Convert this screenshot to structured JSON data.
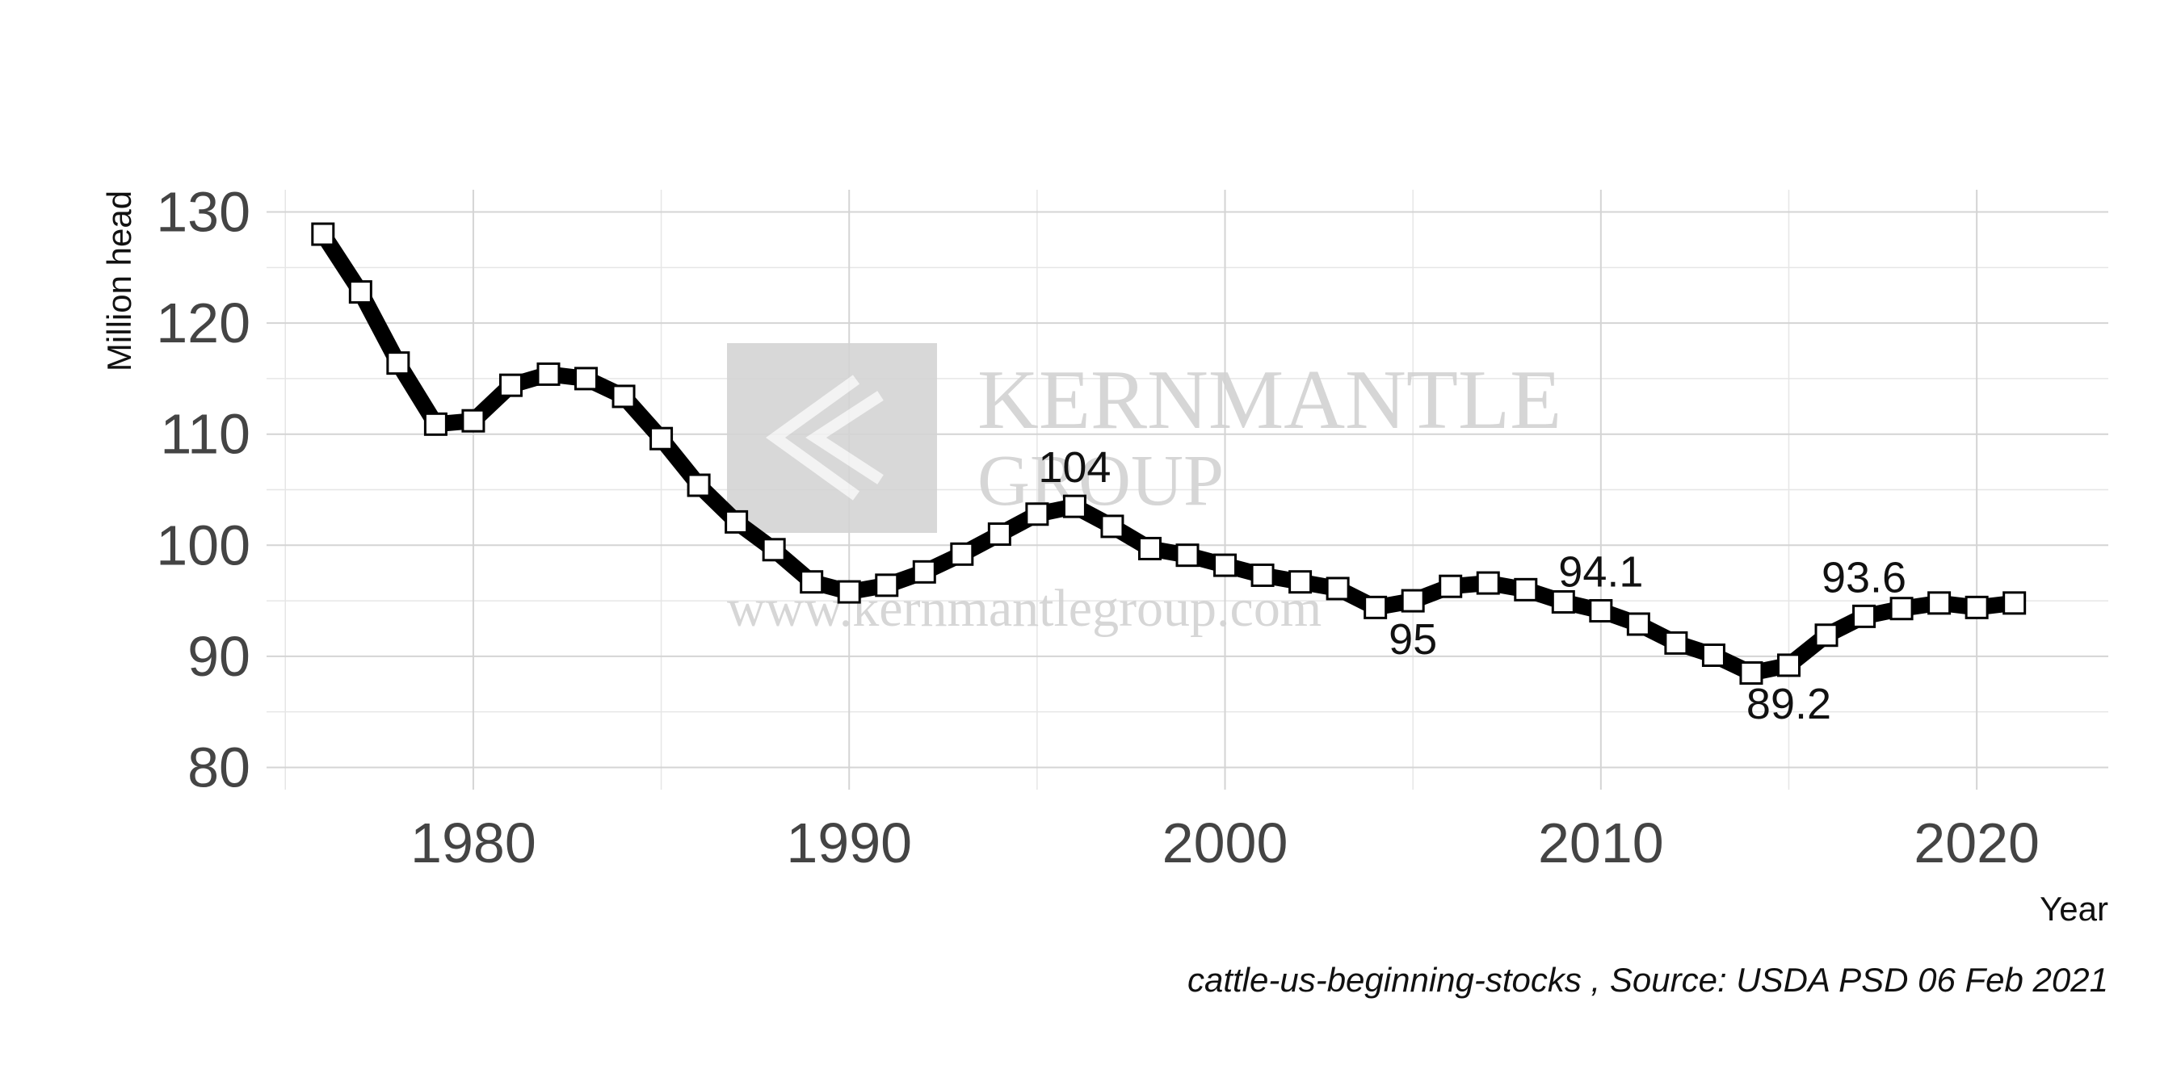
{
  "chart_data": {
    "type": "line",
    "title": "",
    "xlabel": "Year",
    "ylabel": "Million head",
    "caption": "cattle-us-beginning-stocks , Source: USDA PSD  06 Feb 2021",
    "xlim": [
      1974.5,
      2023.5
    ],
    "ylim": [
      78,
      132
    ],
    "x_ticks": [
      1980,
      1990,
      2000,
      2010,
      2020
    ],
    "y_ticks": [
      80,
      90,
      100,
      110,
      120,
      130
    ],
    "grid": true,
    "line_color": "#000000",
    "marker": "square",
    "series": [
      {
        "x": [
          1976,
          1977,
          1978,
          1979,
          1980,
          1981,
          1982,
          1983,
          1984,
          1985,
          1986,
          1987,
          1988,
          1989,
          1990,
          1991,
          1992,
          1993,
          1994,
          1995,
          1996,
          1997,
          1998,
          1999,
          2000,
          2001,
          2002,
          2003,
          2004,
          2005,
          2006,
          2007,
          2008,
          2009,
          2010,
          2011,
          2012,
          2013,
          2014,
          2015,
          2016,
          2017,
          2018,
          2019,
          2020,
          2021
        ],
        "values": [
          128.0,
          122.8,
          116.4,
          110.9,
          111.2,
          114.4,
          115.4,
          115.0,
          113.4,
          109.6,
          105.4,
          102.1,
          99.6,
          96.7,
          95.8,
          96.4,
          97.6,
          99.2,
          101.0,
          102.8,
          103.5,
          101.7,
          99.7,
          99.1,
          98.2,
          97.3,
          96.7,
          96.1,
          94.4,
          95.0,
          96.3,
          96.6,
          96.0,
          94.9,
          94.1,
          92.9,
          91.2,
          90.1,
          88.5,
          89.2,
          91.9,
          93.6,
          94.3,
          94.8,
          94.4,
          94.8
        ]
      }
    ],
    "annotations": [
      {
        "x": 1996,
        "y": 103.5,
        "text": "104",
        "position": "above"
      },
      {
        "x": 2005,
        "y": 95.0,
        "text": "95",
        "position": "below"
      },
      {
        "x": 2010,
        "y": 94.1,
        "text": "94.1",
        "position": "above"
      },
      {
        "x": 2015,
        "y": 89.2,
        "text": "89.2",
        "position": "below"
      },
      {
        "x": 2017,
        "y": 93.6,
        "text": "93.6",
        "position": "above"
      }
    ]
  },
  "watermark": {
    "line1": "KERNMANTLE",
    "line2": "GROUP",
    "url": "www.kernmantlegroup.com"
  }
}
